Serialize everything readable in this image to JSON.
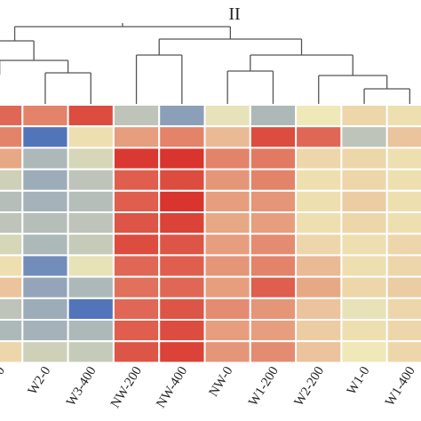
{
  "chart_data": {
    "type": "heatmap",
    "title": "",
    "cluster_label": "II",
    "columns": [
      "",
      "W2-0",
      "W3-400",
      "NW-200",
      "NW-400",
      "NW-0",
      "W1-200",
      "W2-200",
      "W1-0",
      "W1-400"
    ],
    "column_labels_visible": [
      "0",
      "W2-0",
      "W3-400",
      "NW-200",
      "NW-400",
      "NW-0",
      "W1-200",
      "W2-200",
      "W1-0",
      "W1-400"
    ],
    "values": [
      [
        0.7,
        0.55,
        0.85,
        -0.3,
        -0.6,
        -0.05,
        -0.4,
        0.0,
        0.1,
        0.05
      ],
      [
        0.55,
        -0.95,
        0.05,
        0.4,
        0.55,
        0.25,
        0.85,
        0.7,
        -0.3,
        0.2
      ],
      [
        0.35,
        -0.4,
        -0.15,
        0.95,
        0.98,
        0.55,
        0.6,
        0.1,
        0.1,
        0.05
      ],
      [
        -0.2,
        -0.5,
        -0.3,
        0.75,
        0.85,
        0.45,
        0.55,
        0.05,
        0.1,
        0.05
      ],
      [
        -0.35,
        -0.45,
        -0.35,
        0.75,
        0.98,
        0.4,
        0.45,
        0.05,
        0.15,
        0.05
      ],
      [
        -0.3,
        -0.35,
        -0.3,
        0.8,
        0.9,
        0.35,
        0.4,
        0.05,
        0.1,
        0.05
      ],
      [
        -0.15,
        -0.4,
        -0.25,
        0.85,
        0.8,
        0.4,
        0.5,
        0.1,
        0.05,
        0.1
      ],
      [
        0.05,
        -0.75,
        -0.05,
        0.7,
        0.75,
        0.45,
        0.55,
        0.25,
        0.05,
        0.1
      ],
      [
        0.2,
        -0.55,
        -0.4,
        0.65,
        0.7,
        0.4,
        0.75,
        0.35,
        0.1,
        0.15
      ],
      [
        -0.3,
        -0.5,
        -0.95,
        0.7,
        0.8,
        0.5,
        0.45,
        0.2,
        -0.05,
        0.1
      ],
      [
        -0.4,
        -0.45,
        -0.4,
        0.75,
        0.85,
        0.4,
        0.4,
        0.15,
        0.05,
        0.1
      ],
      [
        0.1,
        -0.2,
        -0.25,
        0.8,
        0.9,
        0.45,
        0.5,
        0.2,
        0.0,
        0.1
      ]
    ],
    "colors": {
      "low": "#4a6fba",
      "mid": "#efe8b8",
      "high": "#d9302a"
    },
    "dendrogram": "top",
    "legend": "none"
  }
}
